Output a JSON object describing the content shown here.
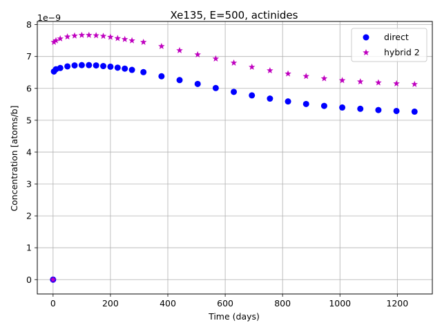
{
  "chart_data": {
    "type": "scatter",
    "title": "Xe135, E=500, actinides",
    "xlabel": "Time (days)",
    "ylabel": "Concentration [atoms/b]",
    "y_offset_text": "1e−9",
    "xlim": [
      -55,
      1322
    ],
    "ylim": [
      -0.45,
      8.1
    ],
    "y_unit_scale": 1e-09,
    "grid": true,
    "legend_position": "upper right",
    "xticks": [
      0,
      200,
      400,
      600,
      800,
      1000,
      1200
    ],
    "yticks": [
      0,
      1,
      2,
      3,
      4,
      5,
      6,
      7,
      8
    ],
    "series": [
      {
        "name": "direct",
        "marker": "circle",
        "color": "#0000ff",
        "x": [
          0,
          3,
          10,
          25,
          50,
          75,
          100,
          125,
          150,
          175,
          200,
          225,
          250,
          275,
          315,
          378,
          441,
          504,
          567,
          630,
          693,
          756,
          819,
          882,
          945,
          1008,
          1071,
          1134,
          1197,
          1260
        ],
        "y": [
          0,
          6.53,
          6.6,
          6.64,
          6.69,
          6.72,
          6.73,
          6.73,
          6.72,
          6.7,
          6.68,
          6.65,
          6.62,
          6.58,
          6.51,
          6.38,
          6.26,
          6.14,
          6.01,
          5.89,
          5.78,
          5.68,
          5.59,
          5.51,
          5.45,
          5.4,
          5.36,
          5.32,
          5.29,
          5.27
        ]
      },
      {
        "name": "hybrid 2",
        "marker": "star",
        "color": "#bf00bf",
        "x": [
          0,
          3,
          10,
          25,
          50,
          75,
          100,
          125,
          150,
          175,
          200,
          225,
          250,
          275,
          315,
          378,
          441,
          504,
          567,
          630,
          693,
          756,
          819,
          882,
          945,
          1008,
          1071,
          1134,
          1197,
          1260
        ],
        "y": [
          0,
          7.45,
          7.5,
          7.56,
          7.62,
          7.65,
          7.67,
          7.67,
          7.66,
          7.64,
          7.61,
          7.57,
          7.54,
          7.5,
          7.45,
          7.32,
          7.19,
          7.06,
          6.93,
          6.8,
          6.67,
          6.56,
          6.46,
          6.38,
          6.31,
          6.25,
          6.21,
          6.18,
          6.15,
          6.13
        ]
      }
    ]
  }
}
